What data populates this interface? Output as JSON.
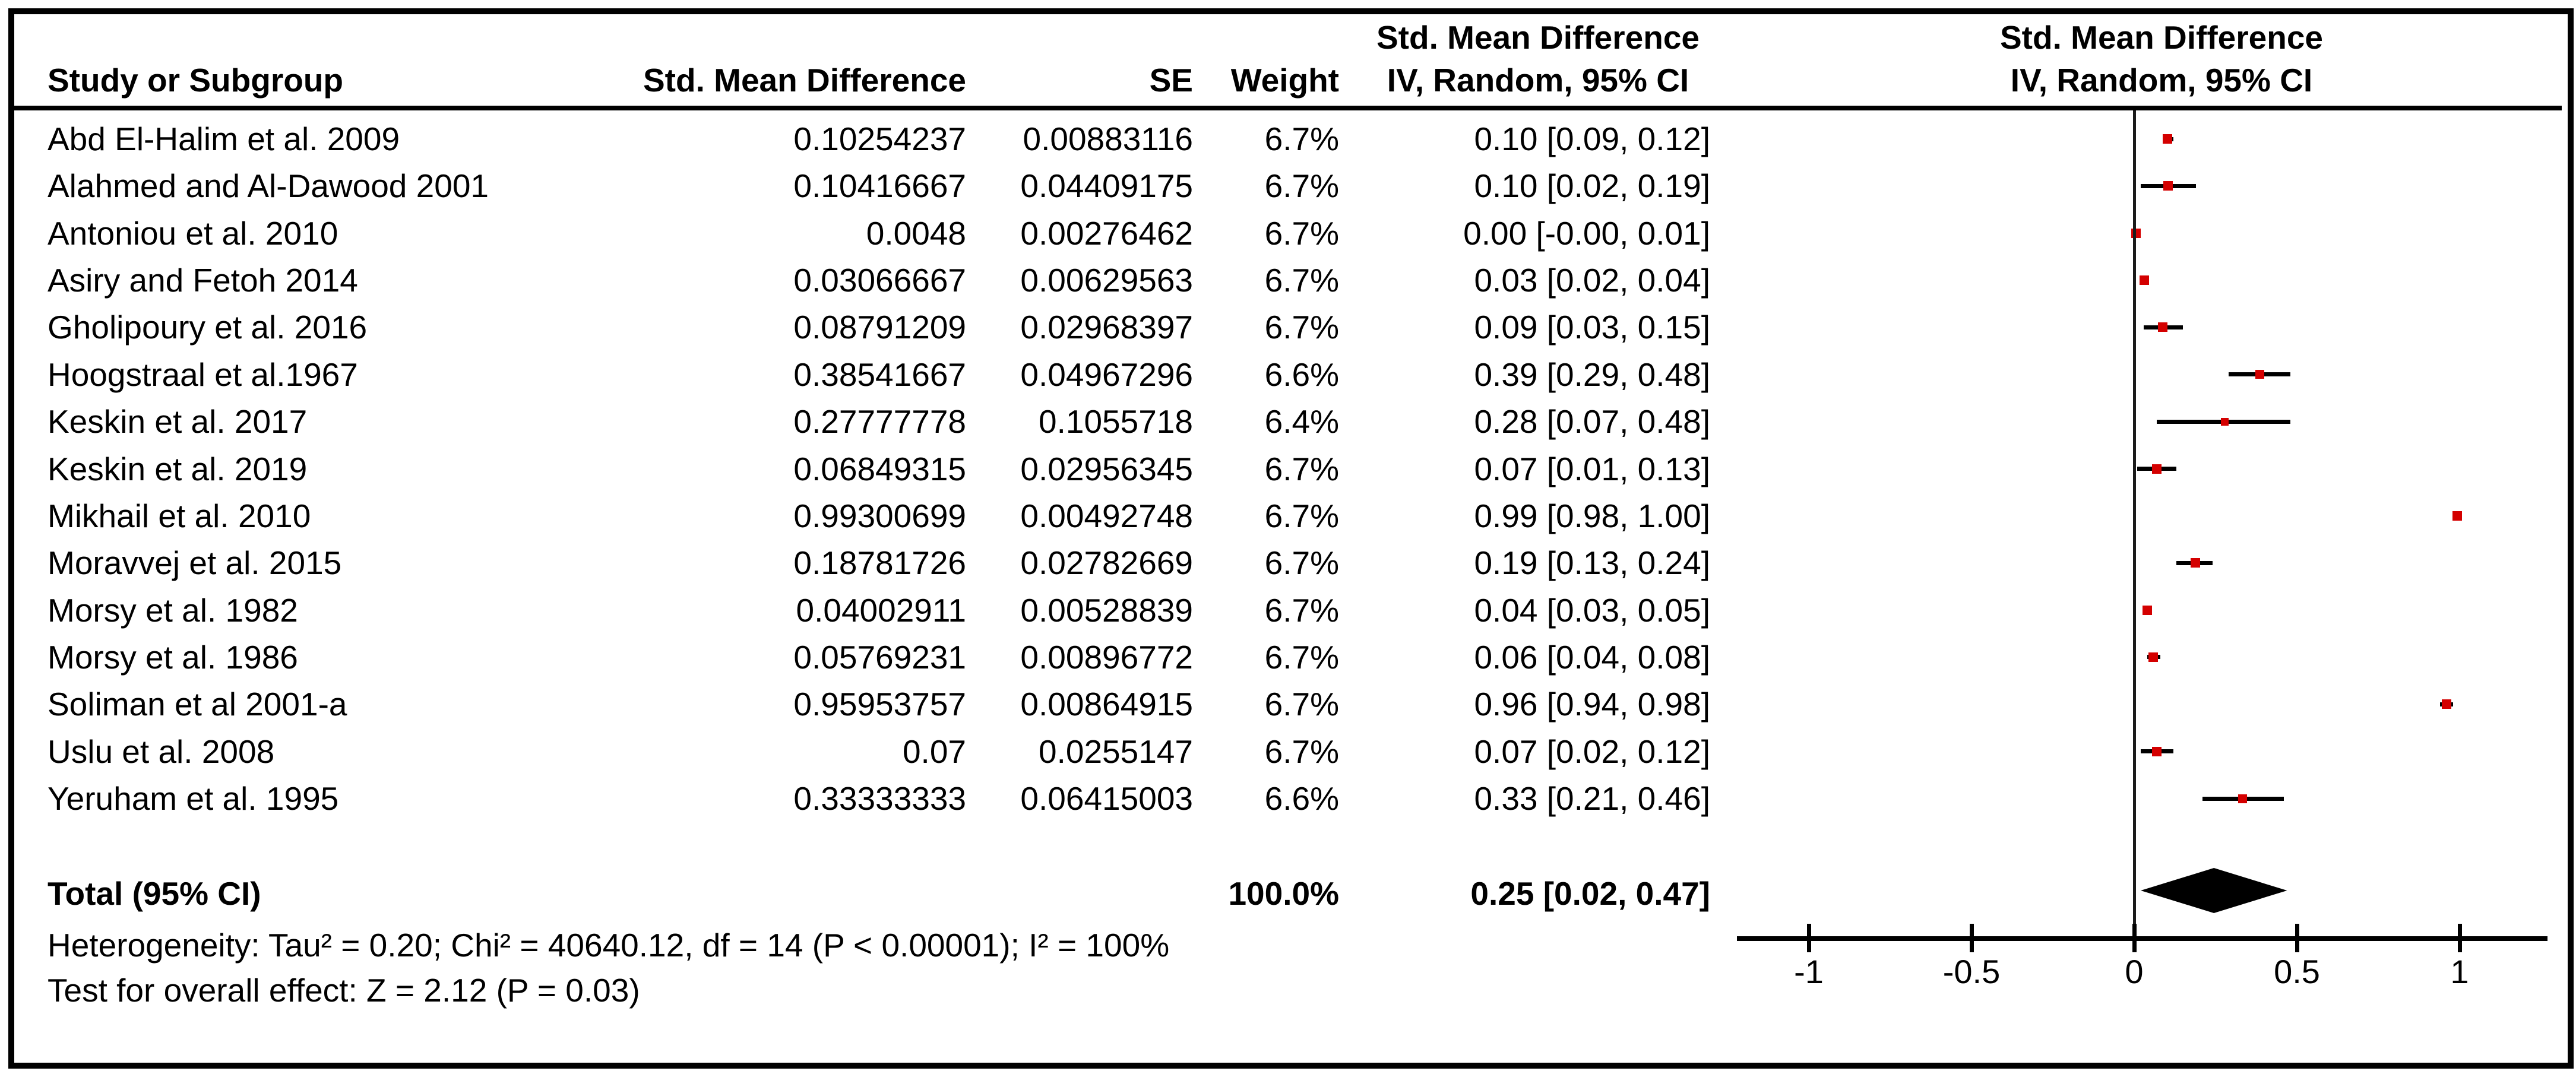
{
  "header": {
    "col_study": "Study or Subgroup",
    "col_smd": "Std. Mean Difference",
    "col_se": "SE",
    "col_weight": "Weight",
    "col_ci_line1": "Std. Mean Difference",
    "col_ci_line2": "IV, Random, 95% CI",
    "plot_line1": "Std. Mean Difference",
    "plot_line2": "IV, Random, 95% CI"
  },
  "rows": [
    {
      "study": "Abd El-Halim et al. 2009",
      "smd": "0.10254237",
      "se": "0.00883116",
      "weight": "6.7%",
      "ci": "0.10 [0.09, 0.12]"
    },
    {
      "study": "Alahmed and Al-Dawood 2001",
      "smd": "0.10416667",
      "se": "0.04409175",
      "weight": "6.7%",
      "ci": "0.10 [0.02, 0.19]"
    },
    {
      "study": "Antoniou et al. 2010",
      "smd": "0.0048",
      "se": "0.00276462",
      "weight": "6.7%",
      "ci": "0.00 [-0.00, 0.01]"
    },
    {
      "study": "Asiry and Fetoh 2014",
      "smd": "0.03066667",
      "se": "0.00629563",
      "weight": "6.7%",
      "ci": "0.03 [0.02, 0.04]"
    },
    {
      "study": "Gholipoury et al. 2016",
      "smd": "0.08791209",
      "se": "0.02968397",
      "weight": "6.7%",
      "ci": "0.09 [0.03, 0.15]"
    },
    {
      "study": "Hoogstraal et al.1967",
      "smd": "0.38541667",
      "se": "0.04967296",
      "weight": "6.6%",
      "ci": "0.39 [0.29, 0.48]"
    },
    {
      "study": "Keskin et al. 2017",
      "smd": "0.27777778",
      "se": "0.1055718",
      "weight": "6.4%",
      "ci": "0.28 [0.07, 0.48]"
    },
    {
      "study": "Keskin et al. 2019",
      "smd": "0.06849315",
      "se": "0.02956345",
      "weight": "6.7%",
      "ci": "0.07 [0.01, 0.13]"
    },
    {
      "study": "Mikhail et al. 2010",
      "smd": "0.99300699",
      "se": "0.00492748",
      "weight": "6.7%",
      "ci": "0.99 [0.98, 1.00]"
    },
    {
      "study": "Moravvej et al. 2015",
      "smd": "0.18781726",
      "se": "0.02782669",
      "weight": "6.7%",
      "ci": "0.19 [0.13, 0.24]"
    },
    {
      "study": "Morsy et al. 1982",
      "smd": "0.04002911",
      "se": "0.00528839",
      "weight": "6.7%",
      "ci": "0.04 [0.03, 0.05]"
    },
    {
      "study": "Morsy et al. 1986",
      "smd": "0.05769231",
      "se": "0.00896772",
      "weight": "6.7%",
      "ci": "0.06 [0.04, 0.08]"
    },
    {
      "study": "Soliman et al 2001-a",
      "smd": "0.95953757",
      "se": "0.00864915",
      "weight": "6.7%",
      "ci": "0.96 [0.94, 0.98]"
    },
    {
      "study": "Uslu et al. 2008",
      "smd": "0.07",
      "se": "0.0255147",
      "weight": "6.7%",
      "ci": "0.07 [0.02, 0.12]"
    },
    {
      "study": "Yeruham et al. 1995",
      "smd": "0.33333333",
      "se": "0.06415003",
      "weight": "6.6%",
      "ci": "0.33 [0.21, 0.46]"
    }
  ],
  "total": {
    "label": "Total (95% CI)",
    "weight": "100.0%",
    "ci": "0.25 [0.02, 0.47]"
  },
  "footer": {
    "heterogeneity": "Heterogeneity: Tau² = 0.20; Chi² = 40640.12, df = 14 (P < 0.00001); I² = 100%",
    "overall_effect": "Test for overall effect: Z = 2.12 (P = 0.03)"
  },
  "colors": {
    "marker_red": "#d40000",
    "line_black": "#000000"
  },
  "chart_data": {
    "type": "scatter",
    "subtype": "forest-plot",
    "title": "Std. Mean Difference  IV, Random, 95% CI",
    "xlabel": "Std. Mean Difference",
    "x_axis": {
      "ticks": [
        -1,
        -0.5,
        0,
        0.5,
        1
      ],
      "tick_labels": [
        "-1",
        "-0.5",
        "0",
        "0.5",
        "1"
      ],
      "range": [
        -1.18,
        1.27
      ],
      "zero_reference_line": true
    },
    "legend_position": "none",
    "grid": false,
    "studies": [
      {
        "name": "Abd El-Halim et al. 2009",
        "est": 0.10254237,
        "lo": 0.09,
        "hi": 0.12,
        "weight_pct": 6.7
      },
      {
        "name": "Alahmed and Al-Dawood 2001",
        "est": 0.10416667,
        "lo": 0.02,
        "hi": 0.19,
        "weight_pct": 6.7
      },
      {
        "name": "Antoniou et al. 2010",
        "est": 0.0048,
        "lo": -0.001,
        "hi": 0.01,
        "weight_pct": 6.7
      },
      {
        "name": "Asiry and Fetoh 2014",
        "est": 0.03066667,
        "lo": 0.02,
        "hi": 0.04,
        "weight_pct": 6.7
      },
      {
        "name": "Gholipoury et al. 2016",
        "est": 0.08791209,
        "lo": 0.03,
        "hi": 0.15,
        "weight_pct": 6.7
      },
      {
        "name": "Hoogstraal et al.1967",
        "est": 0.38541667,
        "lo": 0.29,
        "hi": 0.48,
        "weight_pct": 6.6
      },
      {
        "name": "Keskin et al. 2017",
        "est": 0.27777778,
        "lo": 0.07,
        "hi": 0.48,
        "weight_pct": 6.4
      },
      {
        "name": "Keskin et al. 2019",
        "est": 0.06849315,
        "lo": 0.01,
        "hi": 0.13,
        "weight_pct": 6.7
      },
      {
        "name": "Mikhail et al. 2010",
        "est": 0.99300699,
        "lo": 0.98,
        "hi": 1.0,
        "weight_pct": 6.7
      },
      {
        "name": "Moravvej et al. 2015",
        "est": 0.18781726,
        "lo": 0.13,
        "hi": 0.24,
        "weight_pct": 6.7
      },
      {
        "name": "Morsy et al. 1982",
        "est": 0.04002911,
        "lo": 0.03,
        "hi": 0.05,
        "weight_pct": 6.7
      },
      {
        "name": "Morsy et al. 1986",
        "est": 0.05769231,
        "lo": 0.04,
        "hi": 0.08,
        "weight_pct": 6.7
      },
      {
        "name": "Soliman et al 2001-a",
        "est": 0.95953757,
        "lo": 0.94,
        "hi": 0.98,
        "weight_pct": 6.7
      },
      {
        "name": "Uslu et al. 2008",
        "est": 0.07,
        "lo": 0.02,
        "hi": 0.12,
        "weight_pct": 6.7
      },
      {
        "name": "Yeruham et al. 1995",
        "est": 0.33333333,
        "lo": 0.21,
        "hi": 0.46,
        "weight_pct": 6.6
      }
    ],
    "total": {
      "label": "Total (95% CI)",
      "est": 0.25,
      "lo": 0.02,
      "hi": 0.47,
      "weight_pct": 100.0,
      "heterogeneity": {
        "tau2": 0.2,
        "chi2": 40640.12,
        "df": 14,
        "p": "< 0.00001",
        "i2_pct": 100
      },
      "overall_effect": {
        "z": 2.12,
        "p": 0.03
      }
    }
  }
}
